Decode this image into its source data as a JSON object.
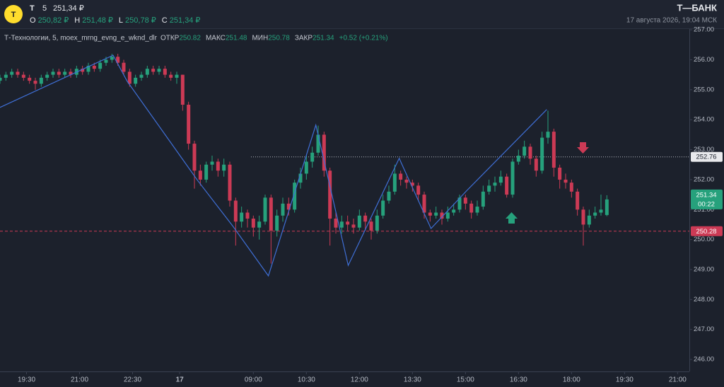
{
  "header": {
    "ticker": "T",
    "interval": "5",
    "last": "251,34 ₽",
    "ohlc": [
      {
        "label": "O",
        "value": "250,82 ₽"
      },
      {
        "label": "H",
        "value": "251,48 ₽"
      },
      {
        "label": "L",
        "value": "250,78 ₽"
      },
      {
        "label": "C",
        "value": "251,34 ₽"
      }
    ],
    "brand": "Т—БАНК",
    "datetime": "17 августа 2026, 19:04 МСК"
  },
  "legend": {
    "name": "Т-Технологии, 5, moex_mrng_evng_e_wknd_dlr",
    "items": [
      {
        "label": "ОТКР",
        "value": "250.82"
      },
      {
        "label": "МАКС",
        "value": "251.48"
      },
      {
        "label": "МИН",
        "value": "250.78"
      },
      {
        "label": "ЗАКР",
        "value": "251.34"
      }
    ],
    "change": "+0.52 (+0.21%)"
  },
  "chart_data": {
    "type": "candlestick",
    "up_color": "#26a17c",
    "down_color": "#cc3a55",
    "x": [
      0,
      2,
      4,
      6,
      8,
      10,
      12,
      14,
      16,
      18,
      20,
      22,
      24,
      26,
      28,
      30,
      32,
      34,
      36,
      38,
      40,
      42,
      44,
      46,
      48,
      50,
      52,
      54,
      56,
      58,
      60,
      62,
      64,
      66,
      68,
      70,
      72,
      74,
      76,
      78,
      80,
      82,
      84,
      86,
      88,
      90,
      92,
      94,
      96,
      98,
      100,
      102,
      104,
      106,
      108,
      110,
      112,
      114,
      116,
      118,
      120,
      122,
      124,
      126,
      128,
      130,
      132,
      134,
      136,
      138,
      140,
      142,
      144,
      146,
      148,
      150,
      152,
      154,
      156,
      158,
      160,
      162,
      164,
      166,
      168,
      170,
      172,
      174,
      176,
      178,
      180,
      182,
      184,
      186,
      188,
      190,
      192,
      194,
      196,
      198,
      200,
      202,
      204,
      206
    ],
    "open": [
      255.3,
      255.4,
      255.5,
      255.6,
      255.5,
      255.4,
      255.3,
      255.2,
      255.4,
      255.5,
      255.6,
      255.5,
      255.6,
      255.5,
      255.7,
      255.6,
      255.8,
      255.7,
      255.9,
      256.0,
      256.1,
      255.9,
      255.6,
      255.2,
      255.4,
      255.5,
      255.7,
      255.6,
      255.7,
      255.5,
      255.4,
      255.5,
      254.5,
      253.2,
      252.3,
      252.0,
      252.5,
      252.6,
      252.3,
      252.5,
      251.3,
      250.6,
      250.9,
      250.7,
      250.4,
      250.6,
      251.4,
      250.3,
      250.8,
      251.2,
      251.0,
      251.9,
      252.2,
      252.6,
      252.9,
      253.5,
      252.3,
      250.7,
      250.4,
      250.6,
      250.5,
      250.4,
      250.8,
      250.6,
      250.3,
      250.8,
      251.3,
      251.6,
      252.2,
      252.0,
      251.9,
      251.8,
      251.5,
      250.9,
      250.8,
      250.9,
      250.7,
      250.9,
      251.0,
      251.4,
      251.2,
      250.9,
      251.1,
      251.6,
      251.8,
      251.9,
      252.1,
      251.5,
      252.6,
      252.8,
      253.1,
      252.7,
      252.3,
      253.4,
      253.6,
      252.4,
      252.0,
      251.9,
      251.6,
      251.0,
      250.5,
      250.8,
      250.9,
      250.82
    ],
    "high": [
      255.5,
      255.6,
      255.7,
      255.7,
      255.6,
      255.5,
      255.4,
      255.5,
      255.6,
      255.7,
      255.7,
      255.7,
      255.7,
      255.8,
      255.8,
      255.9,
      255.9,
      256.0,
      256.1,
      256.2,
      256.2,
      256.0,
      255.7,
      255.5,
      255.6,
      255.8,
      255.8,
      255.8,
      255.8,
      255.6,
      255.6,
      255.5,
      254.6,
      253.3,
      252.5,
      252.6,
      252.8,
      252.7,
      252.7,
      252.6,
      251.4,
      251.1,
      251.0,
      250.8,
      250.8,
      251.5,
      251.5,
      251.0,
      251.4,
      251.4,
      252.0,
      252.4,
      252.8,
      253.1,
      253.8,
      253.6,
      252.4,
      250.9,
      250.8,
      250.8,
      250.7,
      251.0,
      250.9,
      250.7,
      251.0,
      251.5,
      251.8,
      252.5,
      252.3,
      252.1,
      252.0,
      251.9,
      251.6,
      251.0,
      251.1,
      251.0,
      251.1,
      251.2,
      251.5,
      251.5,
      251.3,
      251.3,
      251.8,
      252.0,
      252.1,
      252.3,
      252.2,
      252.7,
      253.0,
      253.3,
      253.2,
      252.8,
      253.6,
      254.3,
      253.7,
      252.5,
      252.2,
      252.0,
      251.7,
      251.1,
      251.0,
      251.1,
      251.5,
      251.48
    ],
    "low": [
      255.2,
      255.3,
      255.4,
      255.4,
      255.3,
      255.2,
      255.0,
      255.1,
      255.3,
      255.4,
      255.4,
      255.4,
      255.4,
      255.4,
      255.5,
      255.5,
      255.6,
      255.6,
      255.8,
      255.9,
      255.8,
      255.5,
      255.1,
      255.1,
      255.3,
      255.4,
      255.5,
      255.5,
      255.4,
      255.3,
      255.2,
      254.3,
      253.0,
      251.7,
      251.8,
      251.9,
      252.3,
      252.1,
      252.1,
      251.1,
      249.8,
      250.4,
      250.4,
      250.1,
      250.0,
      250.5,
      249.2,
      250.1,
      250.6,
      250.8,
      250.9,
      251.7,
      252.0,
      252.4,
      252.8,
      252.1,
      249.8,
      250.2,
      250.2,
      250.3,
      250.2,
      250.3,
      250.3,
      250.0,
      250.2,
      250.7,
      251.2,
      251.5,
      251.8,
      251.7,
      251.6,
      251.3,
      250.7,
      250.6,
      250.7,
      250.5,
      250.6,
      250.8,
      250.9,
      251.0,
      250.7,
      250.8,
      251.0,
      251.5,
      251.6,
      251.8,
      251.4,
      251.4,
      252.5,
      252.7,
      252.5,
      252.1,
      252.2,
      253.2,
      252.1,
      251.7,
      251.7,
      251.4,
      250.8,
      249.8,
      250.4,
      250.7,
      250.8,
      250.78
    ],
    "close": [
      255.4,
      255.5,
      255.6,
      255.5,
      255.4,
      255.3,
      255.2,
      255.4,
      255.5,
      255.6,
      255.5,
      255.6,
      255.5,
      255.7,
      255.6,
      255.8,
      255.7,
      255.9,
      256.0,
      256.1,
      255.9,
      255.6,
      255.2,
      255.4,
      255.5,
      255.7,
      255.6,
      255.7,
      255.5,
      255.4,
      255.5,
      254.5,
      253.2,
      252.3,
      252.0,
      252.5,
      252.6,
      252.3,
      252.5,
      251.3,
      250.6,
      250.9,
      250.7,
      250.4,
      250.6,
      251.4,
      250.3,
      250.8,
      251.2,
      251.0,
      251.9,
      252.2,
      252.6,
      252.9,
      253.5,
      252.3,
      250.7,
      250.4,
      250.6,
      250.5,
      250.4,
      250.8,
      250.6,
      250.3,
      250.8,
      251.3,
      251.6,
      252.2,
      252.0,
      251.9,
      251.8,
      251.5,
      250.9,
      250.8,
      250.9,
      250.7,
      250.9,
      251.0,
      251.4,
      251.2,
      250.9,
      251.1,
      251.6,
      251.8,
      251.9,
      252.1,
      251.5,
      252.6,
      252.8,
      253.1,
      252.7,
      252.3,
      253.4,
      253.6,
      252.4,
      252.0,
      251.9,
      251.6,
      251.0,
      250.5,
      250.8,
      250.9,
      251.0,
      251.34
    ],
    "countdown": "00:22",
    "indicator": {
      "color": "#3f6fd6",
      "x": [
        0,
        38.4,
        43.2,
        67.1,
        79.1,
        91.1,
        107.2,
        118.2,
        135.5,
        146.3,
        158.3,
        185.6
      ],
      "values": [
        254.41,
        256.15,
        255.28,
        251.97,
        250.44,
        248.79,
        253.82,
        249.14,
        252.71,
        250.37,
        251.62,
        254.34
      ]
    },
    "price_lines": [
      {
        "value": 252.76,
        "style": "dotted",
        "color": "#b0b4bc"
      },
      {
        "value": 250.28,
        "style": "dashed",
        "color": "#cc3a55"
      }
    ],
    "xlim": [
      0,
      234
    ],
    "xticks": [
      {
        "value": 9,
        "label": "19:30"
      },
      {
        "value": 27,
        "label": "21:00"
      },
      {
        "value": 45,
        "label": "22:30"
      },
      {
        "value": 61,
        "label": "17"
      },
      {
        "value": 86,
        "label": "09:00"
      },
      {
        "value": 104,
        "label": "10:30"
      },
      {
        "value": 122,
        "label": "12:00"
      },
      {
        "value": 140,
        "label": "13:30"
      },
      {
        "value": 158,
        "label": "15:00"
      },
      {
        "value": 176,
        "label": "16:30"
      },
      {
        "value": 194,
        "label": "18:00"
      },
      {
        "value": 212,
        "label": "19:30"
      },
      {
        "value": 230,
        "label": "21:00"
      }
    ],
    "ylim": [
      245.6,
      257.05
    ],
    "yticks": [
      {
        "value": 246,
        "label": "246.00"
      },
      {
        "value": 247,
        "label": "247.00"
      },
      {
        "value": 248,
        "label": "248.00"
      },
      {
        "value": 249,
        "label": "249.00"
      },
      {
        "value": 250,
        "label": "250.00"
      },
      {
        "value": 251,
        "label": "251.00"
      },
      {
        "value": 252,
        "label": "252.00"
      },
      {
        "value": 253,
        "label": "253.00"
      },
      {
        "value": 254,
        "label": "254.00"
      },
      {
        "value": 255,
        "label": "255.00"
      },
      {
        "value": 256,
        "label": "256.00"
      },
      {
        "value": 257,
        "label": "257.00"
      }
    ]
  }
}
